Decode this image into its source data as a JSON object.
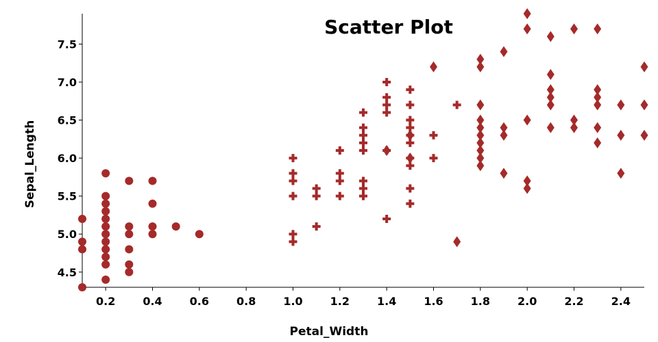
{
  "chart_data": {
    "type": "scatter",
    "title": "Scatter Plot",
    "xlabel": "Petal_Width",
    "ylabel": "Sepal_Length",
    "xlim": [
      0.1,
      2.5
    ],
    "ylim": [
      4.3,
      7.9
    ],
    "xticks": [
      0.2,
      0.4,
      0.6,
      0.8,
      1.0,
      1.2,
      1.4,
      1.6,
      1.8,
      2.0,
      2.2,
      2.4
    ],
    "xtick_labels": [
      "0.2",
      "0.4",
      "0.6",
      "0.8",
      "1.0",
      "1.2",
      "1.4",
      "1.6",
      "1.8",
      "2.0",
      "2.2",
      "2.4"
    ],
    "yticks": [
      4.5,
      5.0,
      5.5,
      6.0,
      6.5,
      7.0,
      7.5
    ],
    "ytick_labels": [
      "4.5",
      "5.0",
      "5.5",
      "6.0",
      "6.5",
      "7.0",
      "7.5"
    ],
    "grid": false,
    "marker_color": "#a52a2a",
    "series": [
      {
        "marker": "circle",
        "points": [
          [
            0.1,
            5.2
          ],
          [
            0.1,
            4.9
          ],
          [
            0.1,
            4.8
          ],
          [
            0.1,
            4.3
          ],
          [
            0.2,
            5.8
          ],
          [
            0.2,
            5.5
          ],
          [
            0.2,
            5.4
          ],
          [
            0.2,
            5.3
          ],
          [
            0.2,
            5.2
          ],
          [
            0.2,
            5.1
          ],
          [
            0.2,
            5.0
          ],
          [
            0.2,
            4.9
          ],
          [
            0.2,
            4.8
          ],
          [
            0.2,
            4.7
          ],
          [
            0.2,
            4.6
          ],
          [
            0.2,
            4.4
          ],
          [
            0.3,
            5.7
          ],
          [
            0.3,
            5.1
          ],
          [
            0.3,
            5.0
          ],
          [
            0.3,
            4.8
          ],
          [
            0.3,
            4.6
          ],
          [
            0.3,
            4.5
          ],
          [
            0.4,
            5.7
          ],
          [
            0.4,
            5.4
          ],
          [
            0.4,
            5.1
          ],
          [
            0.4,
            5.0
          ],
          [
            0.5,
            5.1
          ],
          [
            0.6,
            5.0
          ]
        ]
      },
      {
        "marker": "cross",
        "points": [
          [
            1.0,
            6.0
          ],
          [
            1.0,
            5.8
          ],
          [
            1.0,
            5.7
          ],
          [
            1.0,
            5.5
          ],
          [
            1.0,
            5.0
          ],
          [
            1.0,
            4.9
          ],
          [
            1.1,
            5.6
          ],
          [
            1.1,
            5.5
          ],
          [
            1.1,
            5.1
          ],
          [
            1.2,
            6.1
          ],
          [
            1.2,
            5.8
          ],
          [
            1.2,
            5.7
          ],
          [
            1.2,
            5.5
          ],
          [
            1.3,
            6.6
          ],
          [
            1.3,
            6.4
          ],
          [
            1.3,
            6.3
          ],
          [
            1.3,
            6.2
          ],
          [
            1.3,
            6.1
          ],
          [
            1.3,
            5.7
          ],
          [
            1.3,
            5.6
          ],
          [
            1.3,
            5.5
          ],
          [
            1.4,
            7.0
          ],
          [
            1.4,
            6.8
          ],
          [
            1.4,
            6.7
          ],
          [
            1.4,
            6.6
          ],
          [
            1.4,
            6.1
          ],
          [
            1.4,
            5.2
          ],
          [
            1.5,
            6.9
          ],
          [
            1.5,
            6.7
          ],
          [
            1.5,
            6.5
          ],
          [
            1.5,
            6.4
          ],
          [
            1.5,
            6.3
          ],
          [
            1.5,
            6.2
          ],
          [
            1.5,
            6.0
          ],
          [
            1.5,
            5.9
          ],
          [
            1.5,
            5.6
          ],
          [
            1.5,
            5.4
          ],
          [
            1.6,
            6.3
          ],
          [
            1.6,
            6.0
          ],
          [
            1.7,
            6.7
          ]
        ]
      },
      {
        "marker": "diamond",
        "points": [
          [
            1.4,
            6.1
          ],
          [
            1.5,
            6.0
          ],
          [
            1.5,
            6.3
          ],
          [
            1.6,
            7.2
          ],
          [
            1.7,
            4.9
          ],
          [
            1.8,
            7.3
          ],
          [
            1.8,
            7.2
          ],
          [
            1.8,
            6.7
          ],
          [
            1.8,
            6.5
          ],
          [
            1.8,
            6.4
          ],
          [
            1.8,
            6.3
          ],
          [
            1.8,
            6.2
          ],
          [
            1.8,
            6.1
          ],
          [
            1.8,
            6.0
          ],
          [
            1.8,
            5.9
          ],
          [
            1.9,
            7.4
          ],
          [
            1.9,
            6.4
          ],
          [
            1.9,
            6.3
          ],
          [
            1.9,
            5.8
          ],
          [
            2.0,
            7.9
          ],
          [
            2.0,
            7.7
          ],
          [
            2.0,
            6.5
          ],
          [
            2.0,
            5.7
          ],
          [
            2.0,
            5.6
          ],
          [
            2.1,
            7.6
          ],
          [
            2.1,
            7.1
          ],
          [
            2.1,
            6.9
          ],
          [
            2.1,
            6.8
          ],
          [
            2.1,
            6.7
          ],
          [
            2.1,
            6.4
          ],
          [
            2.2,
            7.7
          ],
          [
            2.2,
            6.5
          ],
          [
            2.2,
            6.4
          ],
          [
            2.3,
            7.7
          ],
          [
            2.3,
            6.9
          ],
          [
            2.3,
            6.8
          ],
          [
            2.3,
            6.7
          ],
          [
            2.3,
            6.4
          ],
          [
            2.3,
            6.2
          ],
          [
            2.4,
            6.7
          ],
          [
            2.4,
            6.3
          ],
          [
            2.4,
            5.8
          ],
          [
            2.5,
            7.2
          ],
          [
            2.5,
            6.7
          ],
          [
            2.5,
            6.3
          ]
        ]
      }
    ]
  }
}
